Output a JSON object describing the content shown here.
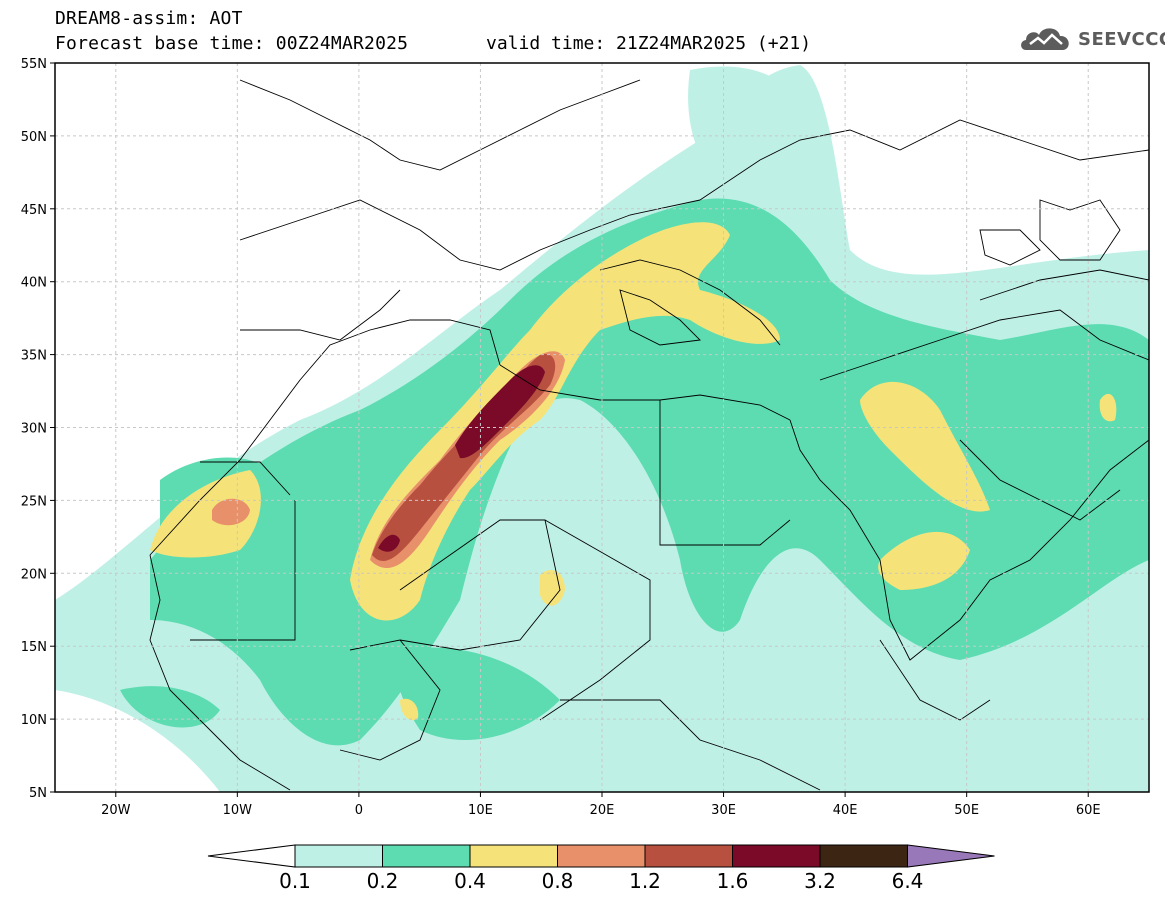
{
  "header": {
    "title": "DREAM8-assim: AOT",
    "base_time": "Forecast base time: 00Z24MAR2025",
    "valid_time": "valid time: 21Z24MAR2025 (+21)"
  },
  "logo": {
    "text": "SEEVCCC",
    "icon": "cloud-logo-icon"
  },
  "map": {
    "lon_range": [
      -25,
      65
    ],
    "lat_range": [
      5,
      55
    ],
    "lat_labels": [
      "5N",
      "10N",
      "15N",
      "20N",
      "25N",
      "30N",
      "35N",
      "40N",
      "45N",
      "50N",
      "55N"
    ],
    "lat_values": [
      5,
      10,
      15,
      20,
      25,
      30,
      35,
      40,
      45,
      50,
      55
    ],
    "lon_labels": [
      "20W",
      "10W",
      "0",
      "10E",
      "20E",
      "30E",
      "40E",
      "50E",
      "60E"
    ],
    "lon_values": [
      -20,
      -10,
      0,
      10,
      20,
      30,
      40,
      50,
      60
    ]
  },
  "colorbar": {
    "labels": [
      "0.1",
      "0.2",
      "0.4",
      "0.8",
      "1.2",
      "1.6",
      "3.2",
      "6.4"
    ],
    "colors": [
      "#bff0e6",
      "#5cdcb0",
      "#f5e37a",
      "#e8906a",
      "#b85040",
      "#7a0a28",
      "#3d2514",
      "#9878b8"
    ]
  },
  "palette": {
    "land_bg": "#ffffff",
    "border": "#000000",
    "grid": "#c8c8c8"
  }
}
